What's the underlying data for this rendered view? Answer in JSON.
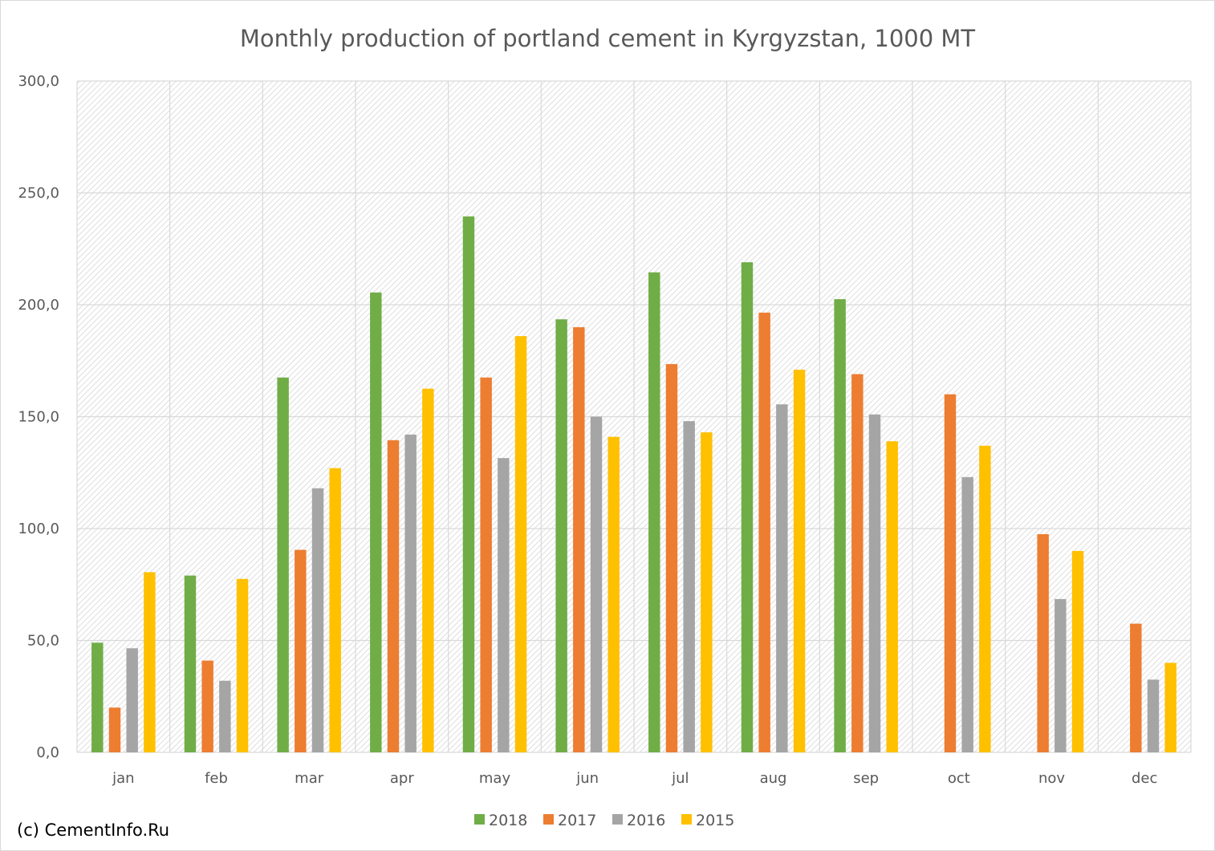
{
  "chart_data": {
    "type": "bar",
    "title": "Monthly production of portland cement in Kyrgyzstan, 1000 MT",
    "categories": [
      "jan",
      "feb",
      "mar",
      "apr",
      "may",
      "jun",
      "jul",
      "aug",
      "sep",
      "oct",
      "nov",
      "dec"
    ],
    "series": [
      {
        "name": "2018",
        "color": "#70ad47",
        "values": [
          49.0,
          79.0,
          167.5,
          205.5,
          239.5,
          193.5,
          214.5,
          219.0,
          202.5,
          null,
          null,
          null
        ]
      },
      {
        "name": "2017",
        "color": "#ed7d31",
        "values": [
          20.0,
          41.0,
          90.5,
          139.5,
          167.5,
          190.0,
          173.5,
          196.5,
          169.0,
          160.0,
          97.5,
          57.5
        ]
      },
      {
        "name": "2016",
        "color": "#a5a5a5",
        "values": [
          46.5,
          32.0,
          118.0,
          142.0,
          131.5,
          150.0,
          148.0,
          155.5,
          151.0,
          123.0,
          68.5,
          32.5
        ]
      },
      {
        "name": "2015",
        "color": "#ffc000",
        "values": [
          80.5,
          77.5,
          127.0,
          162.5,
          186.0,
          141.0,
          143.0,
          171.0,
          139.0,
          137.0,
          90.0,
          40.0
        ]
      }
    ],
    "y_ticks": [
      "0,0",
      "50,0",
      "100,0",
      "150,0",
      "200,0",
      "250,0",
      "300,0"
    ],
    "ylim": [
      0,
      300
    ],
    "xlabel": "",
    "ylabel": "",
    "grid": true,
    "legend_position": "bottom"
  },
  "credit": "(c) CementInfo.Ru"
}
